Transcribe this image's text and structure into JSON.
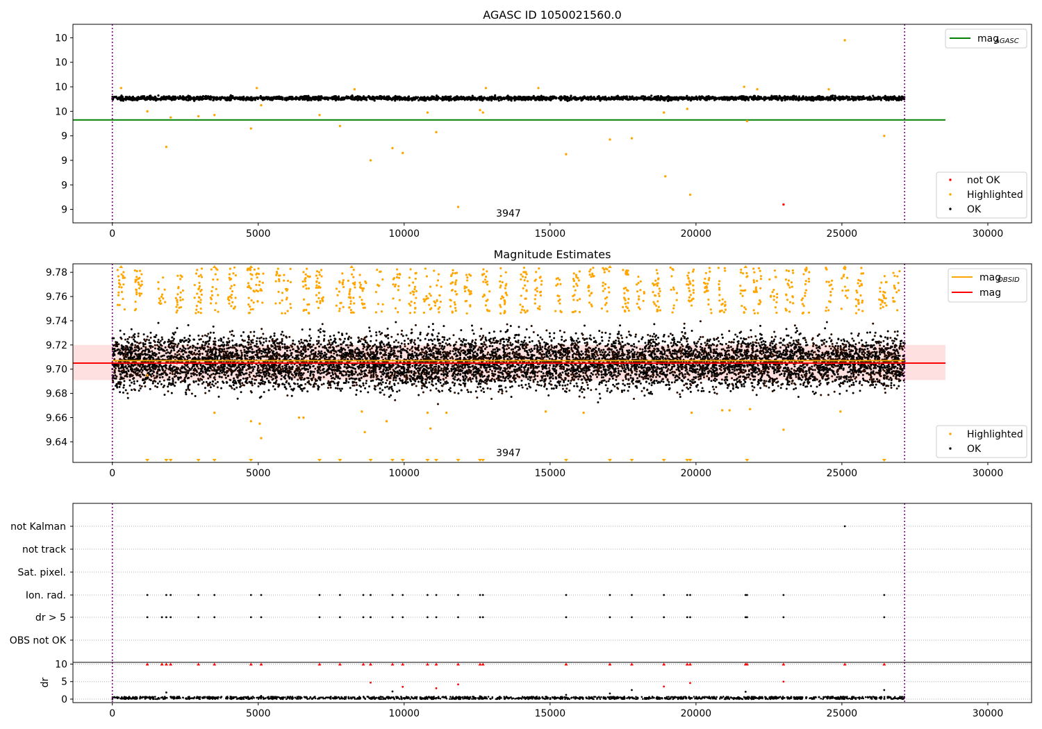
{
  "chart_data": [
    {
      "type": "scatter",
      "title": "AGASC ID 1050021560.0",
      "xlim": [
        -1350,
        31500
      ],
      "ylim": [
        8.69,
        10.31
      ],
      "xticks": [
        0,
        5000,
        10000,
        15000,
        20000,
        25000,
        30000
      ],
      "yticks": [
        8.8,
        9.0,
        9.2,
        9.4,
        9.6,
        9.8,
        10.0,
        10.2
      ],
      "vlines": [
        0,
        27150
      ],
      "annotation": {
        "text": "3947",
        "x": 13400,
        "y": 8.74
      },
      "reference_line": {
        "name": "mag",
        "subscript": "AGASC",
        "y": 9.53,
        "x_range": [
          -1350,
          28550
        ],
        "color": "#008000"
      },
      "band": {
        "y_center": 9.707,
        "y_spread": 0.008,
        "x_range": [
          0,
          27150
        ]
      },
      "series": [
        {
          "name": "not OK",
          "color": "#ff0000",
          "points": [
            [
              23000,
              8.84
            ]
          ]
        },
        {
          "name": "Highlighted",
          "color": "#ffa500",
          "points": [
            [
              1200,
              9.6
            ],
            [
              1850,
              9.31
            ],
            [
              2000,
              9.55
            ],
            [
              2950,
              9.56
            ],
            [
              3500,
              9.57
            ],
            [
              4750,
              9.46
            ],
            [
              5100,
              9.65
            ],
            [
              7100,
              9.57
            ],
            [
              7800,
              9.48
            ],
            [
              8850,
              9.2
            ],
            [
              9600,
              9.3
            ],
            [
              9950,
              9.26
            ],
            [
              10800,
              9.59
            ],
            [
              11100,
              9.43
            ],
            [
              11850,
              8.82
            ],
            [
              12600,
              9.61
            ],
            [
              12700,
              9.59
            ],
            [
              15550,
              9.25
            ],
            [
              17050,
              9.37
            ],
            [
              17800,
              9.38
            ],
            [
              18900,
              9.59
            ],
            [
              18950,
              9.07
            ],
            [
              19700,
              9.62
            ],
            [
              19800,
              8.92
            ],
            [
              21750,
              9.52
            ],
            [
              25100,
              10.18
            ],
            [
              26450,
              9.4
            ],
            [
              300,
              9.79
            ],
            [
              4950,
              9.79
            ],
            [
              8300,
              9.78
            ],
            [
              12800,
              9.79
            ],
            [
              14600,
              9.79
            ],
            [
              21650,
              9.8
            ],
            [
              22100,
              9.78
            ],
            [
              24550,
              9.78
            ]
          ]
        },
        {
          "name": "OK",
          "color": "#000000",
          "points": []
        }
      ],
      "legends": [
        {
          "position": "top-right",
          "entries": [
            {
              "label": "mag",
              "subscript": "AGASC",
              "kind": "line",
              "color": "#008000"
            }
          ]
        },
        {
          "position": "bottom-right",
          "entries": [
            {
              "label": "not OK",
              "kind": "dot",
              "color": "#ff0000"
            },
            {
              "label": "Highlighted",
              "kind": "dot",
              "color": "#ffa500"
            },
            {
              "label": "OK",
              "kind": "dot",
              "color": "#000000"
            }
          ]
        }
      ]
    },
    {
      "type": "scatter",
      "title": "Magnitude Estimates",
      "xlim": [
        -1350,
        31500
      ],
      "ylim": [
        9.623,
        9.787
      ],
      "xticks": [
        0,
        5000,
        10000,
        15000,
        20000,
        25000,
        30000
      ],
      "yticks": [
        9.64,
        9.66,
        9.68,
        9.7,
        9.72,
        9.74,
        9.76,
        9.78
      ],
      "vlines": [
        0,
        27150
      ],
      "annotation": {
        "text": "3947",
        "x": 13400,
        "y": 9.628
      },
      "mag_line": {
        "name": "mag",
        "y": 9.705,
        "x_range": [
          -1350,
          28550
        ],
        "color": "#ff0000",
        "band": [
          9.691,
          9.72
        ]
      },
      "mag_obsid": {
        "name": "mag",
        "subscript": "OBSID",
        "y": 9.707,
        "x_range": [
          0,
          27150
        ],
        "color": "#ffa500"
      },
      "below_axis_markers_x": [
        1200,
        1850,
        2000,
        2950,
        3500,
        4750,
        7100,
        7800,
        8850,
        9600,
        9950,
        10800,
        11100,
        11850,
        12600,
        12700,
        15550,
        17050,
        17800,
        18900,
        19700,
        19800,
        21750,
        26450
      ],
      "series": [
        {
          "name": "Highlighted",
          "color": "#ffa500",
          "points": [
            [
              1200,
              9.695
            ],
            [
              3500,
              9.664
            ],
            [
              4750,
              9.657
            ],
            [
              5100,
              9.643
            ],
            [
              5050,
              9.655
            ],
            [
              6400,
              9.66
            ],
            [
              6550,
              9.66
            ],
            [
              8550,
              9.665
            ],
            [
              8650,
              9.648
            ],
            [
              9400,
              9.657
            ],
            [
              10800,
              9.664
            ],
            [
              10900,
              9.651
            ],
            [
              11450,
              9.664
            ],
            [
              14850,
              9.665
            ],
            [
              16150,
              9.664
            ],
            [
              19850,
              9.664
            ],
            [
              20900,
              9.666
            ],
            [
              21150,
              9.666
            ],
            [
              21850,
              9.667
            ],
            [
              23000,
              9.65
            ],
            [
              24950,
              9.665
            ]
          ]
        },
        {
          "name": "OK",
          "color": "#000000",
          "points": []
        }
      ],
      "legends": [
        {
          "position": "top-right",
          "entries": [
            {
              "label": "mag",
              "subscript": "OBSID",
              "kind": "line",
              "color": "#ffa500"
            },
            {
              "label": "mag",
              "kind": "line",
              "color": "#ff0000"
            }
          ]
        },
        {
          "position": "bottom-right",
          "entries": [
            {
              "label": "Highlighted",
              "kind": "dot",
              "color": "#ffa500"
            },
            {
              "label": "OK",
              "kind": "dot",
              "color": "#000000"
            }
          ]
        }
      ]
    },
    {
      "type": "scatter",
      "title": "",
      "xlim": [
        -1350,
        31500
      ],
      "categories": [
        "not Kalman",
        "not track",
        "Sat. pixel.",
        "Ion. rad.",
        "dr > 5",
        "OBS not OK"
      ],
      "vlines": [
        0,
        27150
      ],
      "flags": {
        "not Kalman": [
          25100
        ],
        "not track": [],
        "Sat. pixel.": [],
        "Ion. rad.": [
          1200,
          1850,
          2000,
          2950,
          3500,
          4750,
          5100,
          7100,
          7800,
          8600,
          8850,
          9600,
          9950,
          10800,
          11100,
          11850,
          12600,
          12700,
          15550,
          17050,
          17800,
          18900,
          19700,
          19800,
          21700,
          21750,
          23000,
          26450
        ],
        "dr > 5": [
          1200,
          1700,
          1850,
          2000,
          2950,
          3500,
          4750,
          5100,
          7100,
          7800,
          8600,
          8850,
          9600,
          9950,
          10800,
          11100,
          11850,
          12600,
          12700,
          15550,
          17050,
          17800,
          18900,
          19700,
          19800,
          21700,
          21750,
          23000,
          26450
        ],
        "OBS not OK": []
      }
    },
    {
      "type": "scatter",
      "title": "",
      "xlim": [
        -1350,
        31500
      ],
      "ylim": [
        -1,
        10.5
      ],
      "ylabel": "dr",
      "xticks": [
        0,
        5000,
        10000,
        15000,
        20000,
        25000,
        30000
      ],
      "yticks": [
        0,
        5,
        10
      ],
      "vlines": [
        0,
        27150
      ],
      "clipped_markers_x": [
        1200,
        1700,
        1850,
        2000,
        2950,
        3500,
        4750,
        5100,
        7100,
        7800,
        8600,
        8850,
        9600,
        9950,
        10800,
        11100,
        11850,
        12600,
        12700,
        15550,
        17050,
        17800,
        18900,
        19700,
        19800,
        21700,
        21750,
        23000,
        25100,
        26450
      ],
      "series": [
        {
          "name": "dr > 5",
          "color": "#ff0000",
          "points": [
            [
              8850,
              4.7
            ],
            [
              9950,
              3.5
            ],
            [
              11100,
              3.1
            ],
            [
              11850,
              4.2
            ],
            [
              18900,
              3.6
            ],
            [
              19800,
              4.6
            ],
            [
              23000,
              5.0
            ]
          ]
        },
        {
          "name": "dr",
          "color": "#000000",
          "points": [
            [
              1850,
              1.9
            ],
            [
              9600,
              2.2
            ],
            [
              17050,
              1.6
            ],
            [
              17800,
              2.6
            ],
            [
              21700,
              2.1
            ],
            [
              26450,
              2.6
            ],
            [
              5100,
              0.9
            ],
            [
              12600,
              0.8
            ],
            [
              15550,
              1.2
            ]
          ]
        }
      ]
    }
  ]
}
